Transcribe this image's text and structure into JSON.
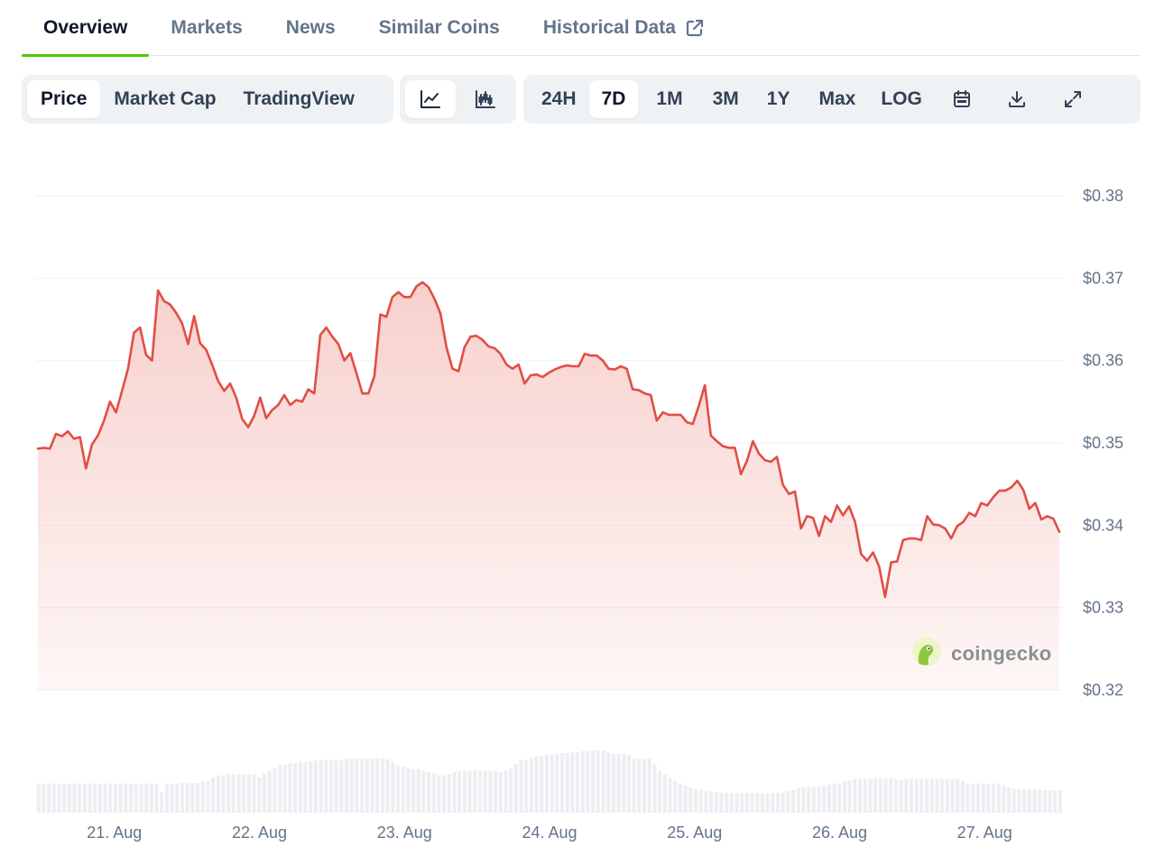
{
  "tabs": [
    {
      "label": "Overview",
      "active": true
    },
    {
      "label": "Markets"
    },
    {
      "label": "News"
    },
    {
      "label": "Similar Coins"
    },
    {
      "label": "Historical Data",
      "icon": "external-link-icon"
    }
  ],
  "toolbar": {
    "metric_tabs": [
      {
        "label": "Price",
        "active": true
      },
      {
        "label": "Market Cap"
      },
      {
        "label": "TradingView"
      }
    ],
    "chart_type_buttons": [
      {
        "icon": "line-chart-icon",
        "active": true
      },
      {
        "icon": "candlestick-chart-icon"
      }
    ],
    "range_tabs": [
      {
        "label": "24H"
      },
      {
        "label": "7D",
        "active": true
      },
      {
        "label": "1M"
      },
      {
        "label": "3M"
      },
      {
        "label": "1Y"
      },
      {
        "label": "Max"
      },
      {
        "label": "LOG"
      }
    ],
    "action_icons": [
      "calendar-icon",
      "download-icon",
      "expand-icon"
    ]
  },
  "watermark": {
    "text": "coingecko",
    "icon": "coingecko-logo"
  },
  "colors": {
    "line": "#e04f45",
    "fill_top": "#f6c8c4",
    "volume": "#eceef2",
    "accent": "#4bcc00"
  },
  "chart_data": {
    "type": "area",
    "title": "",
    "xlabel": "",
    "ylabel": "",
    "ylim": [
      0.32,
      0.38
    ],
    "yticks": [
      "$0.38",
      "$0.37",
      "$0.36",
      "$0.35",
      "$0.34",
      "$0.33",
      "$0.32"
    ],
    "xticks": [
      "21. Aug",
      "22. Aug",
      "23. Aug",
      "24. Aug",
      "25. Aug",
      "26. Aug",
      "27. Aug"
    ],
    "x_start_day": 20.46,
    "x_end_day": 27.54,
    "grid": true,
    "series": [
      {
        "values": [
          0.3493,
          0.3494,
          0.3493,
          0.3511,
          0.3508,
          0.3514,
          0.3505,
          0.3507,
          0.3469,
          0.3498,
          0.3509,
          0.3527,
          0.355,
          0.3537,
          0.3563,
          0.359,
          0.3634,
          0.364,
          0.3607,
          0.36,
          0.3685,
          0.3672,
          0.3668,
          0.3658,
          0.3645,
          0.362,
          0.3654,
          0.3621,
          0.3613,
          0.3595,
          0.3575,
          0.3563,
          0.3572,
          0.3555,
          0.3529,
          0.3519,
          0.3533,
          0.3555,
          0.353,
          0.354,
          0.3546,
          0.3558,
          0.3546,
          0.3552,
          0.355,
          0.3565,
          0.356,
          0.3631,
          0.364,
          0.3629,
          0.362,
          0.36,
          0.3609,
          0.3585,
          0.356,
          0.356,
          0.3581,
          0.3656,
          0.3653,
          0.3677,
          0.3683,
          0.3677,
          0.3677,
          0.369,
          0.3695,
          0.3689,
          0.3675,
          0.3657,
          0.3616,
          0.359,
          0.3587,
          0.3616,
          0.3629,
          0.363,
          0.3625,
          0.3617,
          0.3615,
          0.3608,
          0.3595,
          0.359,
          0.3595,
          0.3572,
          0.3582,
          0.3583,
          0.358,
          0.3585,
          0.3589,
          0.3592,
          0.3594,
          0.3593,
          0.3593,
          0.3608,
          0.3606,
          0.3606,
          0.36,
          0.359,
          0.3589,
          0.3593,
          0.359,
          0.3565,
          0.3564,
          0.356,
          0.3558,
          0.3527,
          0.3537,
          0.3534,
          0.3534,
          0.3534,
          0.3525,
          0.3523,
          0.3545,
          0.357,
          0.3509,
          0.3502,
          0.3496,
          0.3494,
          0.3494,
          0.3462,
          0.3478,
          0.3502,
          0.3487,
          0.3479,
          0.3477,
          0.3483,
          0.3449,
          0.3438,
          0.3441,
          0.3396,
          0.3411,
          0.3409,
          0.3387,
          0.3411,
          0.3404,
          0.3424,
          0.3412,
          0.3423,
          0.3404,
          0.3365,
          0.3357,
          0.3367,
          0.335,
          0.3313,
          0.3355,
          0.3356,
          0.3382,
          0.3384,
          0.3384,
          0.3382,
          0.3411,
          0.3401,
          0.34,
          0.3396,
          0.3384,
          0.3399,
          0.3404,
          0.3415,
          0.3411,
          0.3427,
          0.3424,
          0.3434,
          0.3442,
          0.3442,
          0.3446,
          0.3454,
          0.3443,
          0.342,
          0.3427,
          0.3407,
          0.3411,
          0.3408,
          0.3392
        ]
      }
    ],
    "volume_profile": [
      0.43,
      0.43,
      0.43,
      0.43,
      0.43,
      0.43,
      0.43,
      0.43,
      0.43,
      0.43,
      0.43,
      0.43,
      0.43,
      0.43,
      0.43,
      0.43,
      0.43,
      0.43,
      0.43,
      0.43,
      0.43,
      0.43,
      0.43,
      0.43,
      0.3,
      0.43,
      0.43,
      0.43,
      0.44,
      0.44,
      0.44,
      0.44,
      0.46,
      0.47,
      0.52,
      0.55,
      0.55,
      0.57,
      0.57,
      0.57,
      0.57,
      0.57,
      0.57,
      0.52,
      0.57,
      0.62,
      0.66,
      0.71,
      0.71,
      0.73,
      0.73,
      0.75,
      0.75,
      0.76,
      0.77,
      0.77,
      0.78,
      0.78,
      0.78,
      0.78,
      0.8,
      0.8,
      0.8,
      0.8,
      0.8,
      0.8,
      0.8,
      0.8,
      0.79,
      0.75,
      0.7,
      0.68,
      0.66,
      0.64,
      0.64,
      0.62,
      0.6,
      0.58,
      0.56,
      0.55,
      0.57,
      0.6,
      0.62,
      0.62,
      0.62,
      0.63,
      0.62,
      0.62,
      0.62,
      0.62,
      0.6,
      0.62,
      0.66,
      0.72,
      0.78,
      0.78,
      0.81,
      0.83,
      0.84,
      0.86,
      0.86,
      0.86,
      0.88,
      0.88,
      0.89,
      0.89,
      0.91,
      0.91,
      0.92,
      0.92,
      0.92,
      0.89,
      0.87,
      0.87,
      0.87,
      0.85,
      0.8,
      0.8,
      0.8,
      0.8,
      0.71,
      0.62,
      0.57,
      0.51,
      0.47,
      0.43,
      0.4,
      0.37,
      0.35,
      0.34,
      0.32,
      0.31,
      0.3,
      0.3,
      0.29,
      0.29,
      0.29,
      0.29,
      0.29,
      0.29,
      0.29,
      0.28,
      0.29,
      0.29,
      0.29,
      0.29,
      0.32,
      0.34,
      0.36,
      0.38,
      0.38,
      0.39,
      0.39,
      0.4,
      0.42,
      0.43,
      0.43,
      0.46,
      0.48,
      0.5,
      0.5,
      0.5,
      0.51,
      0.51,
      0.51,
      0.51,
      0.51,
      0.49,
      0.49,
      0.5,
      0.5,
      0.5,
      0.5,
      0.5,
      0.5,
      0.5,
      0.5,
      0.5,
      0.5,
      0.5,
      0.47,
      0.43,
      0.43,
      0.43,
      0.43,
      0.43,
      0.43,
      0.43,
      0.4,
      0.38,
      0.36,
      0.35,
      0.35,
      0.34,
      0.34,
      0.34,
      0.33,
      0.33,
      0.33,
      0.33
    ]
  }
}
